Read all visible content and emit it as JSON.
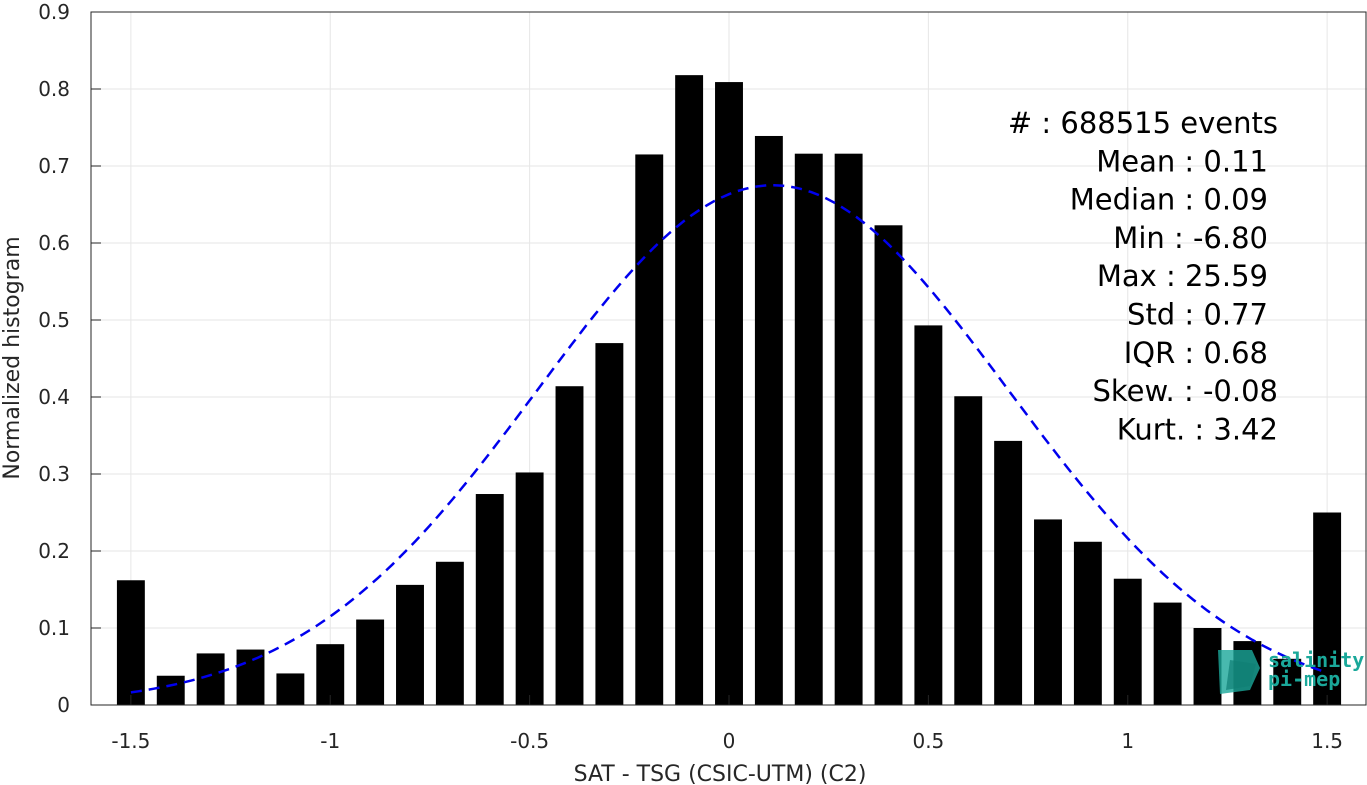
{
  "chart_data": {
    "type": "bar",
    "xlabel": "SAT - TSG (CSIC-UTM) (C2)",
    "ylabel": "Normalized histogram",
    "xlim": [
      -1.6,
      1.6
    ],
    "ylim": [
      0,
      0.9
    ],
    "x_ticks": [
      -1.5,
      -1,
      -0.5,
      0,
      0.5,
      1,
      1.5
    ],
    "x_tick_labels": [
      "-1.5",
      "-1",
      "-0.5",
      "0",
      "0.5",
      "1",
      "1.5"
    ],
    "y_ticks": [
      0,
      0.1,
      0.2,
      0.3,
      0.4,
      0.5,
      0.6,
      0.7,
      0.8,
      0.9
    ],
    "y_tick_labels": [
      "0",
      "0.1",
      "0.2",
      "0.3",
      "0.4",
      "0.5",
      "0.6",
      "0.7",
      "0.8",
      "0.9"
    ],
    "grid": true,
    "bar_color": "#000000",
    "bar_width": 0.07,
    "bars": {
      "x": [
        -1.5,
        -1.4,
        -1.3,
        -1.2,
        -1.1,
        -1.0,
        -0.9,
        -0.8,
        -0.7,
        -0.6,
        -0.5,
        -0.4,
        -0.3,
        -0.2,
        -0.1,
        0.0,
        0.1,
        0.2,
        0.3,
        0.4,
        0.5,
        0.6,
        0.7,
        0.8,
        0.9,
        1.0,
        1.1,
        1.2,
        1.3,
        1.4,
        1.5
      ],
      "values": [
        0.162,
        0.038,
        0.067,
        0.072,
        0.041,
        0.079,
        0.111,
        0.156,
        0.186,
        0.274,
        0.302,
        0.414,
        0.47,
        0.715,
        0.818,
        0.809,
        0.739,
        0.716,
        0.716,
        0.623,
        0.493,
        0.401,
        0.343,
        0.241,
        0.212,
        0.164,
        0.133,
        0.1,
        0.083,
        0.06,
        0.25
      ]
    },
    "fit_curve": {
      "style": "dashed",
      "color": "#0000ee",
      "mean": 0.11,
      "std": 0.59,
      "peak": 0.675,
      "x_range": [
        -1.5,
        1.5
      ]
    },
    "stats": [
      "#  : 688515 events",
      "Mean : 0.11",
      "Median : 0.09",
      "Min : -6.80",
      "Max : 25.59",
      "Std : 0.77",
      "IQR : 0.68",
      "Skew. : -0.08",
      "Kurt. : 3.42"
    ],
    "logo": {
      "line1": "salinity",
      "line2": "pi-mep",
      "color": "#1aa89a"
    }
  }
}
